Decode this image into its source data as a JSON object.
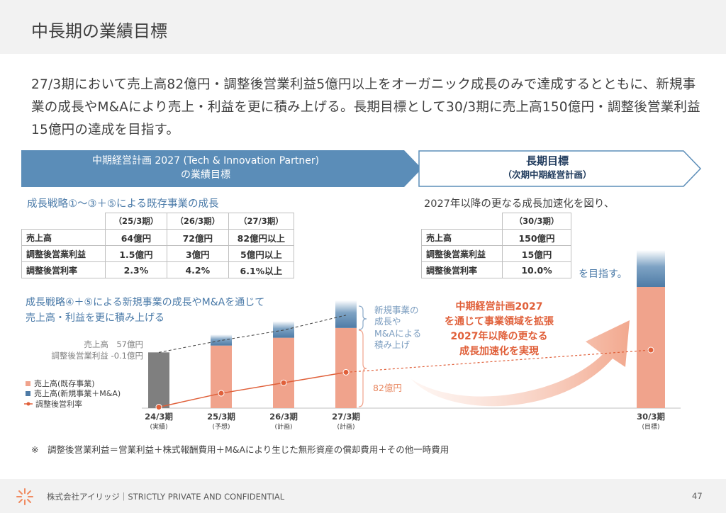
{
  "page": {
    "title": "中長期の業績目標",
    "lead": "27/3期において売上高82億円・調整後営業利益5億円以上をオーガニック成長のみで達成するとともに、新規事業の成長やM&Aにより売上・利益を更に積み上げる。長期目標として30/3期に売上高150億円・調整後営業利益15億円の達成を目指す。",
    "footnote": "※　調整後営業利益＝営業利益＋株式報酬費用＋M&Aにより生じた無形資産の償却費用＋その他一時費用",
    "footer": "株式会社アイリッジ｜STRICTLY PRIVATE AND CONFIDENTIAL",
    "page_number": "47"
  },
  "banners": {
    "mid_line1": "中期経営計画 2027 (Tech & Innovation Partner)",
    "mid_line2": "の業績目標",
    "long_line1": "長期目標",
    "long_line2": "（次期中期経営計画）"
  },
  "mid_table": {
    "heading": "成長戦略①～③＋⑤による既存事業の成長",
    "headers": [
      "（25/3期）",
      "（26/3期）",
      "（27/3期）"
    ],
    "rows": [
      {
        "label": "売上高",
        "values": [
          "64億円",
          "72億円",
          "82億円以上"
        ]
      },
      {
        "label": "調整後営業利益",
        "values": [
          "1.5億円",
          "3億円",
          "5億円以上"
        ]
      },
      {
        "label": "調整後営利率",
        "values": [
          "2.3%",
          "4.2%",
          "6.1%以上"
        ]
      }
    ]
  },
  "long_table": {
    "heading": "2027年以降の更なる成長加速化を図り、",
    "headers": [
      "（30/3期）"
    ],
    "rows": [
      {
        "label": "売上高",
        "values": [
          "150億円"
        ]
      },
      {
        "label": "調整後営業利益",
        "values": [
          "15億円"
        ]
      },
      {
        "label": "調整後営利率",
        "values": [
          "10.0%"
        ]
      }
    ],
    "suffix": "を目指す。"
  },
  "chart_heading": {
    "line1": "成長戦略④＋⑤による新規事業の成長やM&Aを通じて",
    "line2": "売上高・利益を更に積み上げる"
  },
  "chart_annotations": {
    "actual_sales": "売上高　57億円",
    "actual_op": "調整後営業利益 -0.1億円",
    "new_biz_1": "新規事業の",
    "new_biz_2": "成長や",
    "new_biz_3": "M&Aによる",
    "new_biz_4": "積み上げ",
    "base_label": "82億円",
    "callout_1": "中期経営計画2027",
    "callout_2": "を通じて事業領域を拡張",
    "callout_3": "2027年以降の更なる",
    "callout_4": "成長加速化を実現"
  },
  "chart_data": {
    "type": "bar",
    "categories": [
      "24/3期",
      "25/3期",
      "26/3期",
      "27/3期",
      "30/3期"
    ],
    "category_sublabels": [
      "(実績)",
      "(予想)",
      "(計画)",
      "(計画)",
      "(目標)"
    ],
    "legend": [
      "売上高(既存事業)",
      "売上高(新規事業＋M&A)",
      "調整後営利率"
    ],
    "series": [
      {
        "name": "売上高(既存事業)",
        "values": [
          57,
          64,
          72,
          82,
          150
        ],
        "color": "#f0a38c"
      },
      {
        "name": "売上高(新規事業＋M&A)",
        "values": [
          0,
          6,
          9,
          15,
          20
        ],
        "color": "#5b86ad"
      },
      {
        "name": "調整後営利率",
        "values": [
          -0.2,
          2.3,
          4.2,
          6.1,
          10.0
        ],
        "color": "#e0603a"
      }
    ],
    "actual_color": "#7f7f7f"
  }
}
